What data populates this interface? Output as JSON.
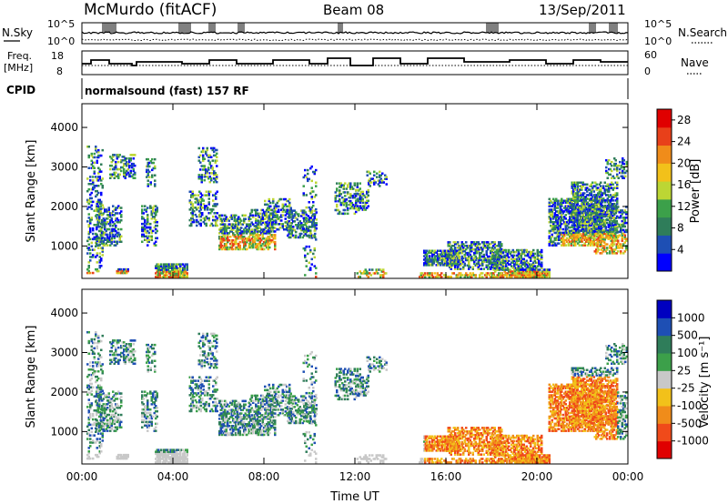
{
  "header": {
    "title": "McMurdo (fitACF)",
    "beam": "Beam 08",
    "date": "13/Sep/2011"
  },
  "panels": {
    "noise": {
      "left_label": "N.Sky",
      "right_label": "N.Search",
      "left_ticks": [
        "10^5",
        "10^0"
      ],
      "right_ticks": [
        "10^5",
        "10^0"
      ]
    },
    "freq": {
      "left_label_1": "Freq.",
      "left_label_2": "[MHz]",
      "left_ticks": [
        "18",
        "8"
      ],
      "right_label": "Nave",
      "right_ticks": [
        "60",
        "0"
      ]
    },
    "cpid": {
      "label": "CPID",
      "text": "normalsound (fast) 157 RF"
    }
  },
  "colors": {
    "power_scale": [
      "#0000ff",
      "#1e4fb4",
      "#2f7d5a",
      "#3ca04a",
      "#bcd634",
      "#f2c11a",
      "#f08c1a",
      "#e8401a",
      "#e00000"
    ],
    "velocity_scale": [
      "#e00000",
      "#f04a1a",
      "#f08c1a",
      "#f2c11a",
      "#c8c8c8",
      "#3ca04a",
      "#2f7d5a",
      "#1e4fb4",
      "#0000c0"
    ]
  },
  "chart_data": [
    {
      "type": "heatmap",
      "name": "power",
      "xlabel": "",
      "ylabel": "Slant Range [km]",
      "x_ticks": [
        "00:00",
        "04:00",
        "08:00",
        "12:00",
        "16:00",
        "20:00",
        "00:00"
      ],
      "x_range_hours": [
        0,
        24
      ],
      "y_ticks": [
        1000,
        2000,
        3000,
        4000
      ],
      "ylim": [
        180,
        4600
      ],
      "colorbar": {
        "label": "Power [dB]",
        "ticks": [
          "4",
          "8",
          "12",
          "16",
          "20",
          "24",
          "28"
        ],
        "range": [
          0,
          30
        ]
      }
    },
    {
      "type": "heatmap",
      "name": "velocity",
      "xlabel": "Time UT",
      "ylabel": "Slant Range [km]",
      "x_ticks": [
        "00:00",
        "04:00",
        "08:00",
        "12:00",
        "16:00",
        "20:00",
        "00:00"
      ],
      "x_range_hours": [
        0,
        24
      ],
      "y_ticks": [
        1000,
        2000,
        3000,
        4000
      ],
      "ylim": [
        180,
        4600
      ],
      "colorbar": {
        "label": "Velocity [m s⁻¹]",
        "ticks": [
          "1000",
          "500",
          "100",
          "25",
          "-25",
          "-100",
          "-500",
          "-1000"
        ]
      }
    }
  ]
}
